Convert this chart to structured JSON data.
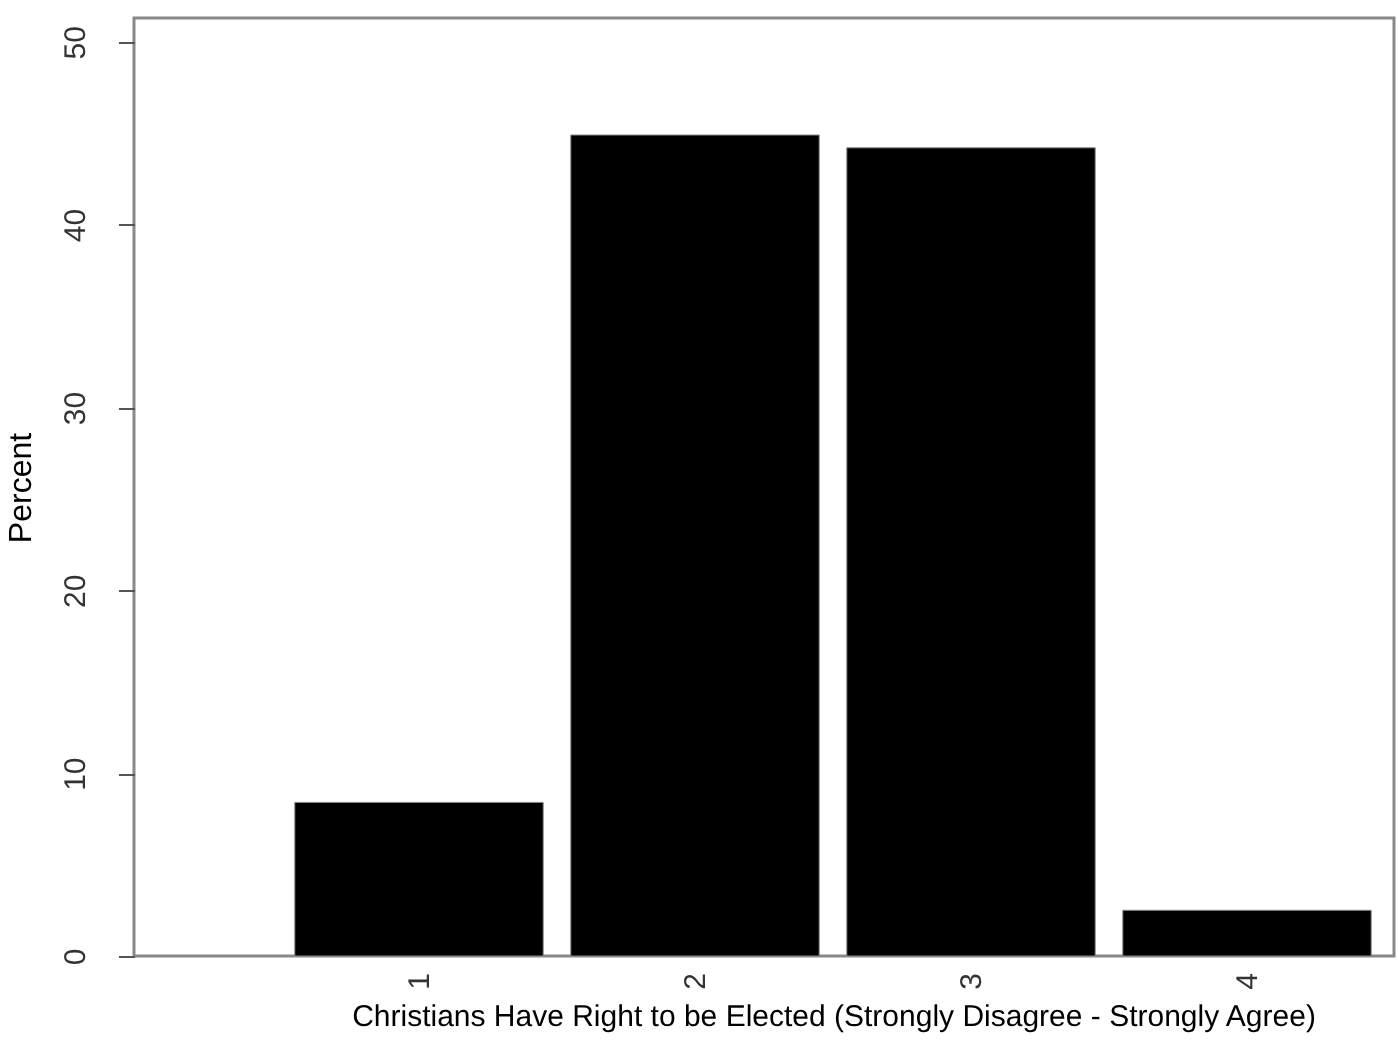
{
  "chart_data": {
    "type": "bar",
    "xlabel": "Christians Have Right to be Elected (Strongly Disagree - Strongly Agree)",
    "ylabel": "Percent",
    "categories": [
      "1",
      "2",
      "3",
      "4"
    ],
    "values": [
      8.4,
      44.9,
      44.2,
      2.5
    ],
    "color": "#000000",
    "ylim": [
      0,
      51.3
    ],
    "yticks": [
      0,
      10,
      20,
      30,
      40,
      50
    ],
    "grid": false
  }
}
